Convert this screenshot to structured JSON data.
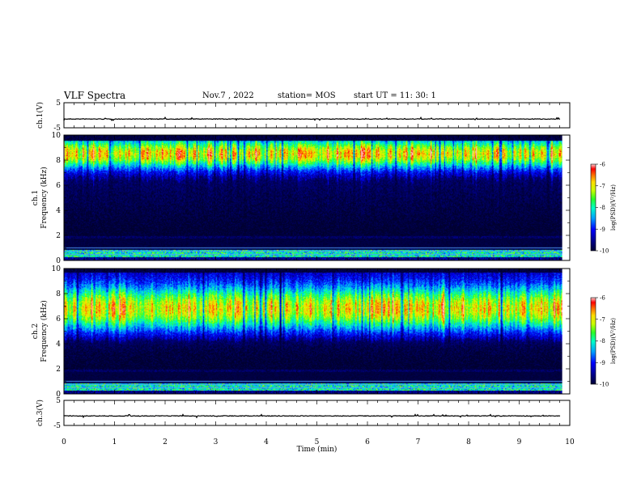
{
  "header": {
    "title": "VLF Spectra",
    "date": "Nov.7 , 2022",
    "station": "station= MOS",
    "start_ut": "start UT =  11: 30: 1"
  },
  "chart_data": [
    {
      "type": "line",
      "name": "ch1-waveform",
      "ylabel": "ch.1(V)",
      "ylim": [
        -5,
        5
      ],
      "yticks": [
        "5",
        "-5"
      ],
      "xlim": [
        0,
        10
      ],
      "baseline": -1.5
    },
    {
      "type": "heatmap",
      "name": "ch1-spectrogram",
      "ylabel": "ch.1\nFrequency (kHz)",
      "ylim": [
        0,
        10
      ],
      "yticks": [
        "0",
        "2",
        "4",
        "6",
        "8",
        "10"
      ],
      "xlim": [
        0,
        9.85
      ],
      "colorbar": {
        "label": "log(PSD)(V²/Hz)",
        "ticks": [
          "-6",
          "-7",
          "-8",
          "-9",
          "-10"
        ],
        "range": [
          -10,
          -6
        ],
        "colors": [
          "#000080",
          "#0000ff",
          "#00c0ff",
          "#00ff80",
          "#c0ff00",
          "#ffff00",
          "#ff8000",
          "#ff0000",
          "#ffc0c0",
          "#ffffff"
        ]
      },
      "band_peak_khz": 8.5
    },
    {
      "type": "heatmap",
      "name": "ch2-spectrogram",
      "ylabel": "ch.2\nFrequency (kHz)",
      "ylim": [
        0,
        10
      ],
      "yticks": [
        "0",
        "2",
        "4",
        "6",
        "8",
        "10"
      ],
      "xlim": [
        0,
        9.85
      ],
      "colorbar": {
        "label": "log(PSD)(V²/Hz)",
        "ticks": [
          "-6",
          "-7",
          "-8",
          "-9",
          "-10"
        ],
        "range": [
          -10,
          -6
        ]
      },
      "band_peak_khz": 6.8
    },
    {
      "type": "line",
      "name": "ch3-waveform",
      "ylabel": "ch.3(V)",
      "ylim": [
        -5,
        5
      ],
      "yticks": [
        "5",
        "-5"
      ],
      "xlim": [
        0,
        10
      ],
      "baseline": -1.2
    }
  ],
  "xaxis": {
    "label": "Time (min)",
    "ticks": [
      "0",
      "1",
      "2",
      "3",
      "4",
      "5",
      "6",
      "7",
      "8",
      "9",
      "10"
    ]
  }
}
